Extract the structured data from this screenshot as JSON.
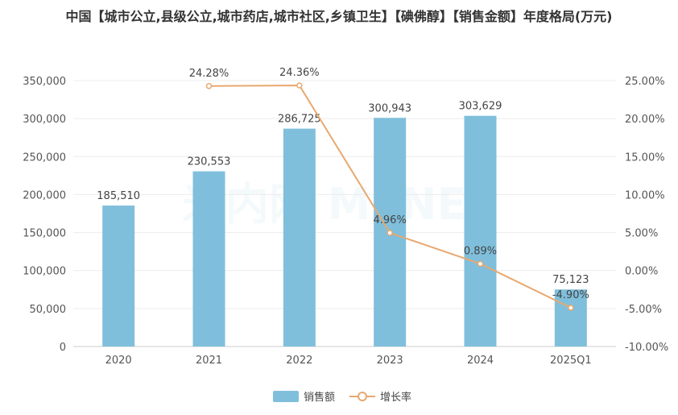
{
  "chart_data": {
    "type": "bar+line",
    "title": "中国【城市公立,县级公立,城市药店,城市社区,乡镇卫生】【碘佛醇】【销售金额】年度格局(万元)",
    "categories": [
      "2020",
      "2021",
      "2022",
      "2023",
      "2024",
      "2025Q1"
    ],
    "series": [
      {
        "name": "销售额",
        "type": "bar",
        "axis": "left",
        "color": "#7fbfdc",
        "values": [
          185510,
          230553,
          286725,
          300943,
          303629,
          75123
        ],
        "labels": [
          "185,510",
          "230,553",
          "286,725",
          "300,943",
          "303,629",
          "75,123"
        ]
      },
      {
        "name": "增长率",
        "type": "line",
        "axis": "right",
        "color": "#e8a870",
        "values": [
          null,
          24.28,
          24.36,
          4.96,
          0.89,
          -4.9
        ],
        "labels": [
          "",
          "24.28%",
          "24.36%",
          "4.96%",
          "0.89%",
          "-4.90%"
        ]
      }
    ],
    "left_axis": {
      "ylim": [
        0,
        350000
      ],
      "ticks": [
        "0",
        "50,000",
        "100,000",
        "150,000",
        "200,000",
        "250,000",
        "300,000",
        "350,000"
      ]
    },
    "right_axis": {
      "ylim": [
        -10,
        25
      ],
      "ticks": [
        "-10.00%",
        "-5.00%",
        "0.00%",
        "5.00%",
        "10.00%",
        "15.00%",
        "20.00%",
        "25.00%"
      ]
    },
    "grid": true,
    "legend": "bottom-center",
    "watermark": "米内网 MENET"
  }
}
